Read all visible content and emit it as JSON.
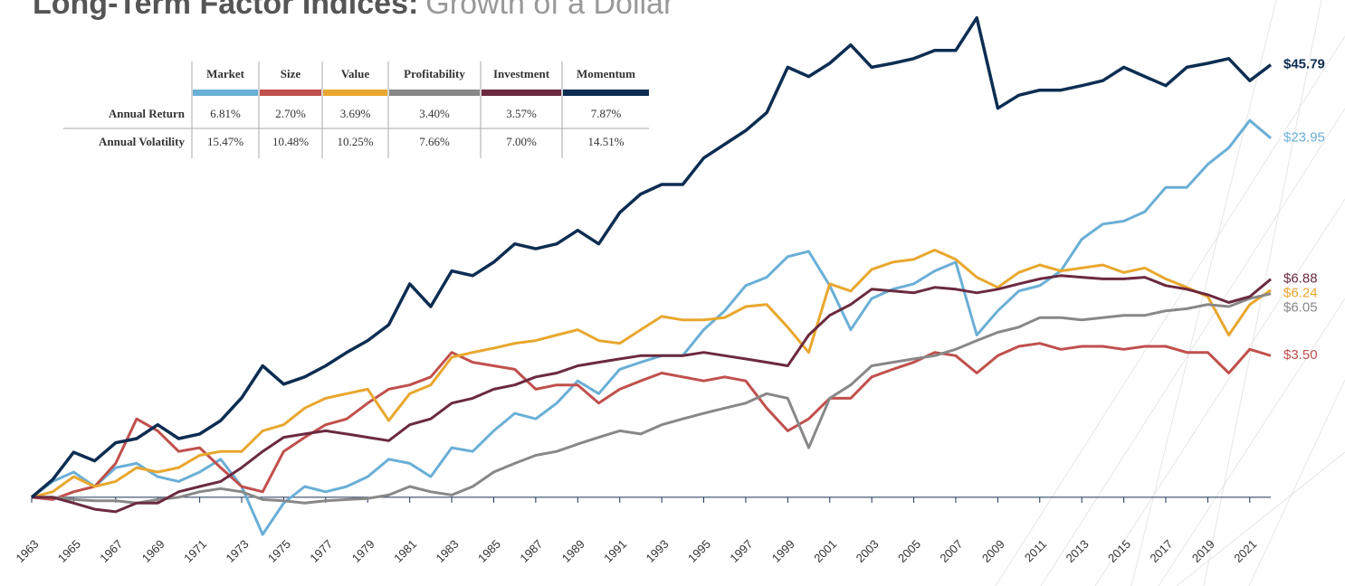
{
  "chart_data": {
    "type": "line",
    "title": "Long-Term Factor Indices:",
    "subtitle": "Growth of a Dollar",
    "log_scale": true,
    "xlim": [
      1963,
      2022
    ],
    "ylim": [
      0.67,
      75
    ],
    "baseline": 1,
    "xticks": [
      1963,
      1965,
      1967,
      1969,
      1971,
      1973,
      1975,
      1977,
      1979,
      1981,
      1983,
      1985,
      1987,
      1989,
      1991,
      1993,
      1995,
      1997,
      1999,
      2001,
      2003,
      2005,
      2007,
      2009,
      2011,
      2013,
      2015,
      2017,
      2019,
      2021
    ],
    "x": [
      1963,
      1964,
      1965,
      1966,
      1967,
      1968,
      1969,
      1970,
      1971,
      1972,
      1973,
      1974,
      1975,
      1976,
      1977,
      1978,
      1979,
      1980,
      1981,
      1982,
      1983,
      1984,
      1985,
      1986,
      1987,
      1988,
      1989,
      1990,
      1991,
      1992,
      1993,
      1994,
      1995,
      1996,
      1997,
      1998,
      1999,
      2000,
      2001,
      2002,
      2003,
      2004,
      2005,
      2006,
      2007,
      2008,
      2009,
      2010,
      2011,
      2012,
      2013,
      2014,
      2015,
      2016,
      2017,
      2018,
      2019,
      2020,
      2021,
      2022
    ],
    "series": [
      {
        "name": "Market",
        "color": "#6aafd6",
        "end_label": "$23.95",
        "values": [
          1,
          1.15,
          1.25,
          1.1,
          1.3,
          1.35,
          1.2,
          1.15,
          1.25,
          1.4,
          1.1,
          0.72,
          0.95,
          1.1,
          1.05,
          1.1,
          1.2,
          1.4,
          1.35,
          1.2,
          1.55,
          1.5,
          1.8,
          2.1,
          2.0,
          2.3,
          2.8,
          2.5,
          3.1,
          3.3,
          3.5,
          3.5,
          4.4,
          5.2,
          6.5,
          7.0,
          8.4,
          8.8,
          6.5,
          4.4,
          5.8,
          6.3,
          6.6,
          7.4,
          8.0,
          4.2,
          5.2,
          6.2,
          6.5,
          7.4,
          9.8,
          11.2,
          11.5,
          12.5,
          15.5,
          15.5,
          19.0,
          22,
          28,
          23.95
        ]
      },
      {
        "name": "Size",
        "color": "#c0504d",
        "end_label": "$3.50",
        "values": [
          1,
          0.98,
          1.05,
          1.1,
          1.35,
          2.0,
          1.8,
          1.5,
          1.55,
          1.3,
          1.1,
          1.05,
          1.5,
          1.7,
          1.9,
          2.0,
          2.3,
          2.6,
          2.7,
          2.9,
          3.6,
          3.3,
          3.2,
          3.1,
          2.6,
          2.7,
          2.7,
          2.3,
          2.6,
          2.8,
          3.0,
          2.9,
          2.8,
          2.9,
          2.8,
          2.2,
          1.8,
          2.0,
          2.4,
          2.4,
          2.9,
          3.1,
          3.3,
          3.6,
          3.5,
          3.0,
          3.5,
          3.8,
          3.9,
          3.7,
          3.8,
          3.8,
          3.7,
          3.8,
          3.8,
          3.6,
          3.6,
          3.0,
          3.7,
          3.5
        ]
      },
      {
        "name": "Value",
        "color": "#e8a72e",
        "end_label": "$6.24",
        "values": [
          1,
          1.05,
          1.2,
          1.1,
          1.15,
          1.3,
          1.25,
          1.3,
          1.45,
          1.5,
          1.5,
          1.8,
          1.9,
          2.2,
          2.4,
          2.5,
          2.6,
          1.97,
          2.5,
          2.7,
          3.45,
          3.6,
          3.74,
          3.9,
          4.0,
          4.2,
          4.4,
          4.0,
          3.9,
          4.4,
          4.95,
          4.8,
          4.8,
          4.9,
          5.4,
          5.5,
          4.5,
          3.6,
          6.6,
          6.2,
          7.5,
          8.0,
          8.2,
          8.9,
          8.2,
          7.0,
          6.4,
          7.3,
          7.8,
          7.4,
          7.6,
          7.8,
          7.3,
          7.6,
          6.9,
          6.4,
          5.9,
          4.2,
          5.5,
          6.24
        ]
      },
      {
        "name": "Profitability",
        "color": "#888888",
        "end_label": "$6.05",
        "values": [
          1,
          1.0,
          0.98,
          0.97,
          0.97,
          0.95,
          0.98,
          1.0,
          1.05,
          1.08,
          1.05,
          0.98,
          0.97,
          0.95,
          0.97,
          0.98,
          0.99,
          1.02,
          1.1,
          1.05,
          1.02,
          1.1,
          1.25,
          1.35,
          1.45,
          1.5,
          1.6,
          1.7,
          1.8,
          1.75,
          1.9,
          2.0,
          2.1,
          2.2,
          2.3,
          2.5,
          2.4,
          1.55,
          2.4,
          2.7,
          3.2,
          3.3,
          3.4,
          3.5,
          3.7,
          4.0,
          4.3,
          4.5,
          4.9,
          4.9,
          4.8,
          4.9,
          5.0,
          5.0,
          5.2,
          5.3,
          5.5,
          5.4,
          5.8,
          6.05
        ]
      },
      {
        "name": "Investment",
        "color": "#6b2a3f",
        "end_label": "$6.88",
        "values": [
          1,
          1.0,
          0.95,
          0.9,
          0.88,
          0.95,
          0.95,
          1.05,
          1.1,
          1.15,
          1.3,
          1.5,
          1.7,
          1.75,
          1.8,
          1.75,
          1.7,
          1.65,
          1.9,
          2.0,
          2.3,
          2.4,
          2.6,
          2.7,
          2.9,
          3.0,
          3.2,
          3.3,
          3.4,
          3.5,
          3.5,
          3.5,
          3.6,
          3.5,
          3.4,
          3.3,
          3.2,
          4.2,
          5.0,
          5.5,
          6.3,
          6.2,
          6.1,
          6.4,
          6.3,
          6.1,
          6.3,
          6.6,
          6.9,
          7.1,
          7.0,
          6.9,
          6.9,
          7.0,
          6.5,
          6.3,
          6.0,
          5.6,
          5.9,
          6.88
        ]
      },
      {
        "name": "Momentum",
        "color": "#0d2d52",
        "end_label": "$45.79",
        "values": [
          1,
          1.17,
          1.49,
          1.38,
          1.62,
          1.68,
          1.9,
          1.68,
          1.75,
          1.97,
          2.41,
          3.2,
          2.72,
          2.9,
          3.2,
          3.6,
          4.0,
          4.6,
          6.6,
          5.4,
          7.4,
          7.1,
          8.0,
          9.4,
          9.0,
          9.4,
          10.6,
          9.4,
          12.4,
          14.6,
          15.9,
          15.9,
          20.1,
          22.7,
          25.6,
          30.0,
          44.8,
          41.3,
          46.4,
          54.6,
          44.8,
          46.4,
          48.4,
          52.0,
          52.0,
          69.4,
          31.2,
          35.0,
          36.6,
          36.6,
          38.1,
          39.8,
          44.8,
          41.3,
          38.1,
          44.8,
          46.4,
          48.4,
          39.8,
          45.79
        ]
      }
    ]
  },
  "table": {
    "headers": [
      "Market",
      "Size",
      "Value",
      "Profitability",
      "Investment",
      "Momentum"
    ],
    "rows": [
      {
        "label": "Annual Return",
        "cells": [
          "6.81%",
          "2.70%",
          "3.69%",
          "3.40%",
          "3.57%",
          "7.87%"
        ]
      },
      {
        "label": "Annual Volatility",
        "cells": [
          "15.47%",
          "10.48%",
          "10.25%",
          "7.66%",
          "7.00%",
          "14.51%"
        ]
      }
    ]
  }
}
